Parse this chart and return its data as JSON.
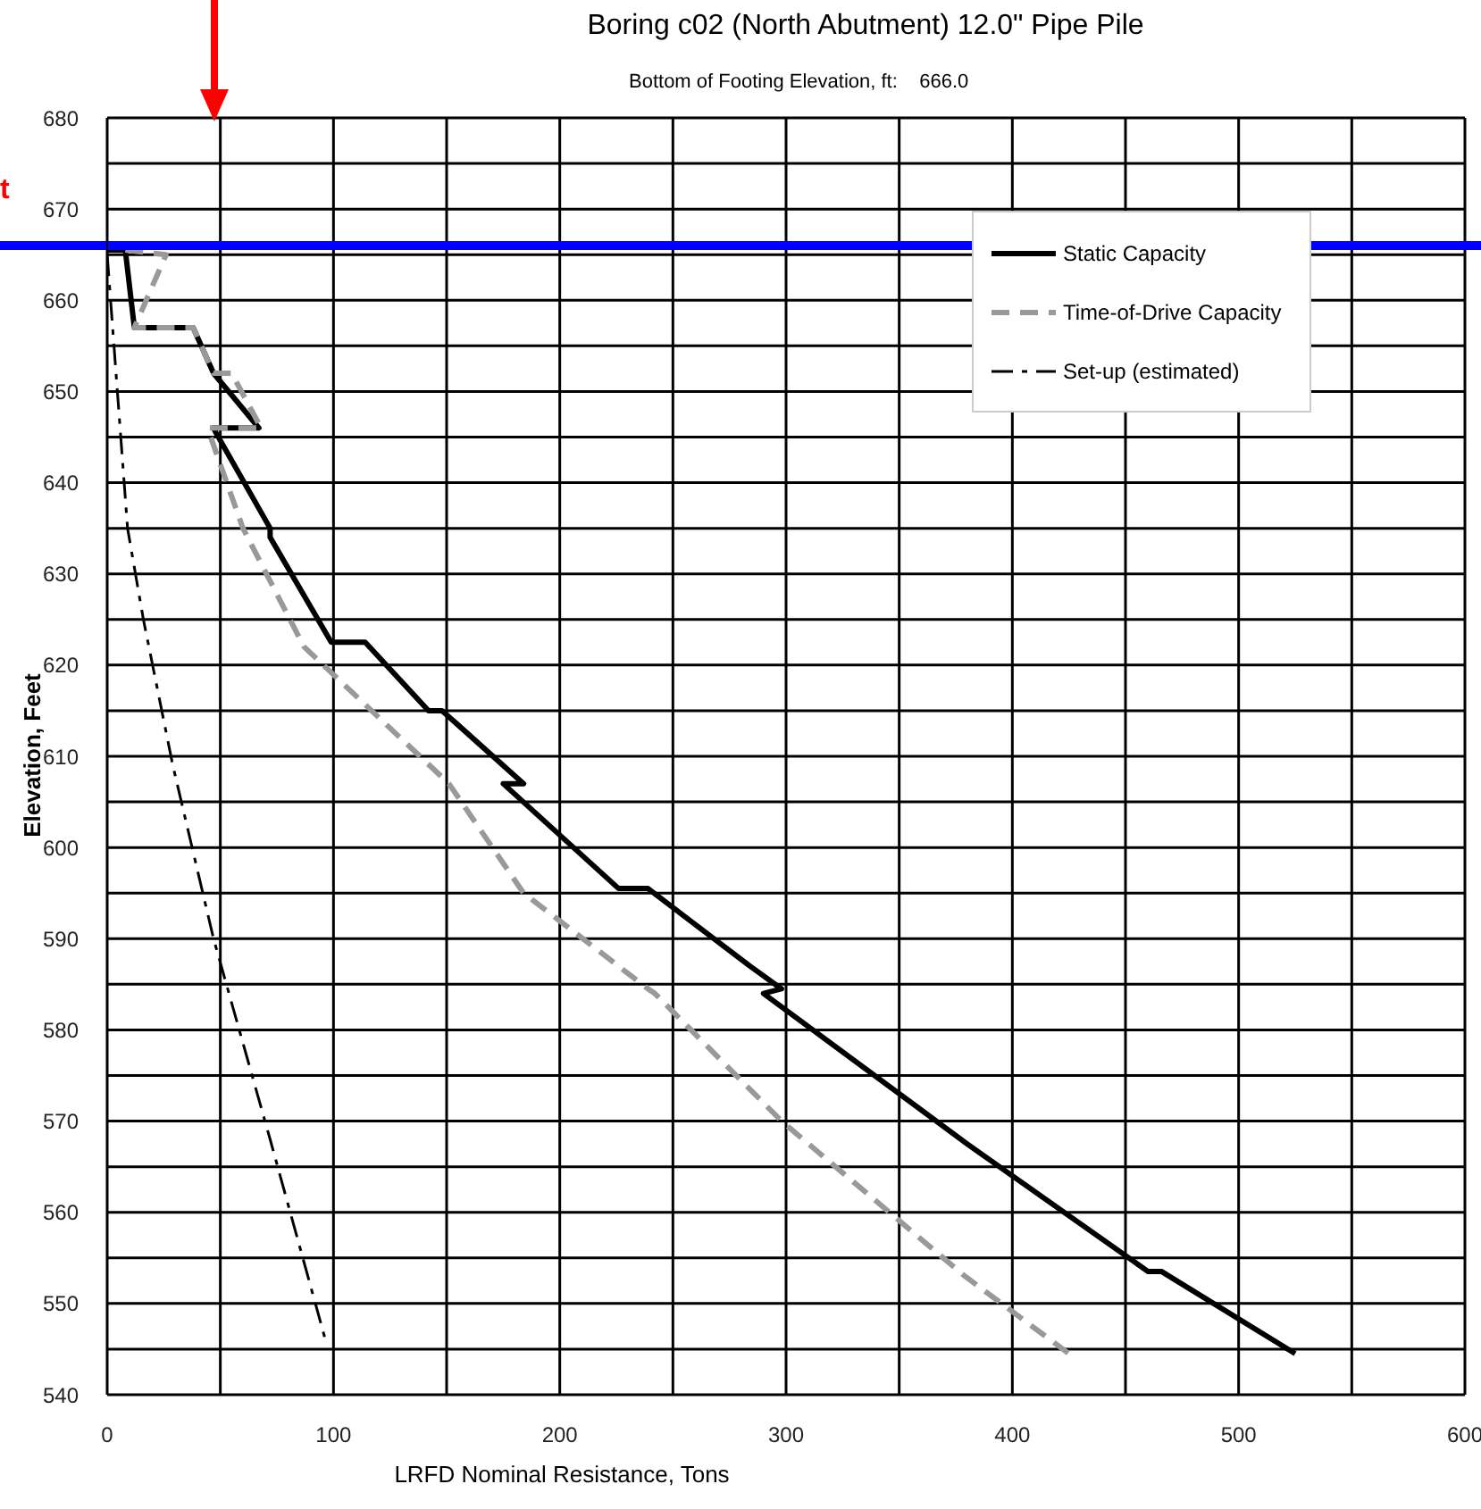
{
  "chart_data": {
    "type": "line",
    "title": "Boring c02  (North Abutment) 12.0\" Pipe Pile",
    "subtitle": "Bottom of Footing Elevation, ft:    666.0",
    "xlabel": "LRFD Nominal Resistance, Tons",
    "ylabel": "Elevation, Feet",
    "annotations": [
      "t"
    ],
    "series": [
      {
        "name": "Static Capacity",
        "color": "#000000",
        "line_style": "solid",
        "x": [
          0,
          8,
          12,
          38,
          47,
          67,
          47,
          48,
          72,
          72,
          99,
          114,
          142,
          148,
          184,
          175,
          226,
          239,
          284,
          298,
          290,
          380,
          460,
          466,
          525
        ],
        "values": [
          665.5,
          665.5,
          657,
          657,
          652,
          646,
          646,
          645.5,
          635,
          634,
          622.5,
          622.5,
          615,
          615,
          607,
          607,
          595.5,
          595.5,
          587,
          584.5,
          584,
          567.5,
          553.5,
          553.5,
          544.5
        ]
      },
      {
        "name": "Time-of-Drive Capacity",
        "color": "#999999",
        "line_style": "dashed",
        "x": [
          8,
          26,
          12,
          38,
          47,
          55,
          68,
          45,
          45,
          60,
          87,
          151,
          184,
          239,
          242,
          298,
          379,
          425
        ],
        "values": [
          665.5,
          665,
          657,
          657,
          652,
          652,
          646,
          646,
          645.5,
          635,
          622,
          607,
          595,
          584.5,
          584,
          570,
          553,
          544.5
        ]
      },
      {
        "name": "Set-up (estimated)",
        "color": "#000000",
        "line_style": "dashdot",
        "x": [
          0,
          9,
          16,
          29,
          47,
          72,
          97
        ],
        "values": [
          665,
          635,
          625,
          609,
          590,
          568,
          545.5
        ]
      }
    ],
    "xlim": [
      0,
      600
    ],
    "xticks": [
      0,
      {
        "value": 50,
        "label": null
      },
      100,
      {
        "value": 150,
        "label": null
      },
      200,
      {
        "value": 250,
        "label": null
      },
      300,
      {
        "value": 350,
        "label": null
      },
      400,
      {
        "value": 450,
        "label": null
      },
      500,
      {
        "value": 550,
        "label": null
      },
      600
    ],
    "ylim": [
      540,
      680
    ],
    "yticks": [
      540,
      {
        "value": 545,
        "label": null
      },
      550,
      {
        "value": 555,
        "label": null
      },
      560,
      {
        "value": 565,
        "label": null
      },
      570,
      {
        "value": 575,
        "label": null
      },
      580,
      {
        "value": 585,
        "label": null
      },
      590,
      {
        "value": 595,
        "label": null
      },
      600,
      {
        "value": 605,
        "label": null
      },
      610,
      {
        "value": 615,
        "label": null
      },
      620,
      {
        "value": 625,
        "label": null
      },
      630,
      {
        "value": 635,
        "label": null
      },
      640,
      {
        "value": 645,
        "label": null
      },
      650,
      {
        "value": 655,
        "label": null
      },
      660,
      {
        "value": 665,
        "label": null
      },
      670,
      {
        "value": 675,
        "label": null
      },
      680
    ],
    "ref_lines": [
      {
        "axis": "y",
        "value": 666,
        "color": "#0000ff"
      }
    ],
    "grid": true,
    "legend": "top right",
    "marker": "none"
  }
}
